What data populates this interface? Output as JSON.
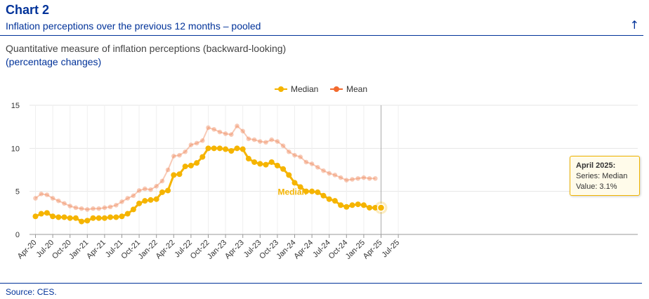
{
  "header": {
    "title": "Chart 2",
    "subtitle": "Inflation perceptions over the previous 12 months – pooled",
    "description": "Quantitative measure of inflation perceptions (backward-looking)",
    "unit": "(percentage changes)"
  },
  "tooltip": {
    "title": "April 2025:",
    "series_line": "Series: Median",
    "value_line": "Value: 3.1%"
  },
  "footer": {
    "source": "Source: CES."
  },
  "colors": {
    "median": "#f5b400",
    "mean": "#f08a5d",
    "accent": "#003299"
  },
  "chart_data": {
    "type": "line",
    "x": [
      "2020-04",
      "2020-05",
      "2020-06",
      "2020-07",
      "2020-08",
      "2020-09",
      "2020-10",
      "2020-11",
      "2020-12",
      "2021-01",
      "2021-02",
      "2021-03",
      "2021-04",
      "2021-05",
      "2021-06",
      "2021-07",
      "2021-08",
      "2021-09",
      "2021-10",
      "2021-11",
      "2021-12",
      "2022-01",
      "2022-02",
      "2022-03",
      "2022-04",
      "2022-05",
      "2022-06",
      "2022-07",
      "2022-08",
      "2022-09",
      "2022-10",
      "2022-11",
      "2022-12",
      "2023-01",
      "2023-02",
      "2023-03",
      "2023-04",
      "2023-05",
      "2023-06",
      "2023-07",
      "2023-08",
      "2023-09",
      "2023-10",
      "2023-11",
      "2023-12",
      "2024-01",
      "2024-02",
      "2024-03",
      "2024-04",
      "2024-05",
      "2024-06",
      "2024-07",
      "2024-08",
      "2024-09",
      "2024-10",
      "2024-11",
      "2024-12",
      "2025-01",
      "2025-02",
      "2025-03",
      "2025-04"
    ],
    "x_tick_labels": [
      "Apr-20",
      "Jul-20",
      "Oct-20",
      "Jan-21",
      "Apr-21",
      "Jul-21",
      "Oct-21",
      "Jan-22",
      "Apr-22",
      "Jul-22",
      "Oct-22",
      "Jan-23",
      "Apr-23",
      "Jul-23",
      "Oct-23",
      "Jan-24",
      "Apr-24",
      "Jul-24",
      "Oct-24",
      "Jan-25",
      "Apr-25",
      "Jul-25"
    ],
    "ylim": [
      0,
      15
    ],
    "yticks": [
      0,
      5,
      10,
      15
    ],
    "grid": true,
    "legend_position": "top-center",
    "series": [
      {
        "name": "Median",
        "values": [
          2.1,
          2.4,
          2.5,
          2.1,
          2.0,
          2.0,
          1.9,
          1.9,
          1.5,
          1.6,
          1.9,
          1.9,
          1.9,
          2.0,
          2.0,
          2.1,
          2.4,
          2.9,
          3.6,
          3.9,
          4.0,
          4.1,
          4.9,
          5.1,
          6.9,
          7.0,
          7.9,
          8.0,
          8.3,
          9.0,
          10.0,
          10.0,
          10.0,
          9.9,
          9.7,
          10.0,
          9.9,
          8.8,
          8.4,
          8.2,
          8.1,
          8.4,
          8.0,
          7.6,
          6.9,
          6.0,
          5.5,
          5.0,
          5.0,
          4.9,
          4.5,
          4.1,
          3.9,
          3.4,
          3.2,
          3.4,
          3.5,
          3.4,
          3.1,
          3.1,
          3.1
        ]
      },
      {
        "name": "Mean",
        "values": [
          4.2,
          4.7,
          4.6,
          4.2,
          3.9,
          3.6,
          3.3,
          3.1,
          3.0,
          2.9,
          3.0,
          3.0,
          3.1,
          3.2,
          3.4,
          3.8,
          4.2,
          4.5,
          5.1,
          5.3,
          5.2,
          5.6,
          6.2,
          7.5,
          9.1,
          9.2,
          9.6,
          10.4,
          10.6,
          10.9,
          12.4,
          12.2,
          11.9,
          11.7,
          11.6,
          12.6,
          12.0,
          11.1,
          11.0,
          10.8,
          10.7,
          11.0,
          10.8,
          10.3,
          9.6,
          9.2,
          9.0,
          8.4,
          8.2,
          7.8,
          7.4,
          7.1,
          6.9,
          6.6,
          6.3,
          6.4,
          6.5,
          6.6,
          6.5,
          6.5,
          null
        ]
      }
    ]
  }
}
